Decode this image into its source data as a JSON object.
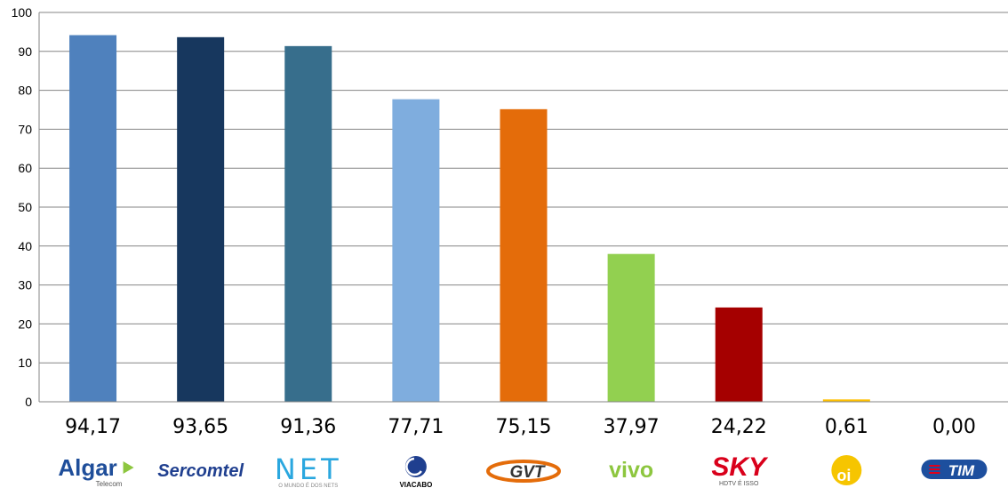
{
  "chart_data": {
    "type": "bar",
    "title": "",
    "xlabel": "",
    "ylabel": "",
    "ylim": [
      0,
      100
    ],
    "yticks": [
      0,
      10,
      20,
      30,
      40,
      50,
      60,
      70,
      80,
      90,
      100
    ],
    "grid": true,
    "legend": "none",
    "categories": [
      "Algar Telecom",
      "Sercomtel",
      "NET",
      "Viacabo",
      "GVT",
      "vivo",
      "SKY",
      "oi",
      "TIM"
    ],
    "values": [
      94.17,
      93.65,
      91.36,
      77.71,
      75.15,
      37.97,
      24.22,
      0.61,
      0.0
    ],
    "value_labels": [
      "94,17",
      "93,65",
      "91,36",
      "77,71",
      "75,15",
      "37,97",
      "24,22",
      "0,61",
      "0,00"
    ],
    "colors": [
      "#4f81bd",
      "#17375e",
      "#376e8c",
      "#7fadde",
      "#e46c0a",
      "#92d050",
      "#a50000",
      "#ffc000",
      "#1f497d"
    ],
    "logos": [
      {
        "name": "algar-telecom-logo",
        "text": "Algar",
        "subtext": "Telecom",
        "color": "#1f4e9a"
      },
      {
        "name": "sercomtel-logo",
        "text": "Sercomtel",
        "color": "#1f3f8f"
      },
      {
        "name": "net-logo",
        "text": "NET",
        "subtext": "O MUNDO É DOS NETS",
        "color": "#2aa7df"
      },
      {
        "name": "viacabo-logo",
        "text": "VIACABO",
        "color": "#1f3f8f"
      },
      {
        "name": "gvt-logo",
        "text": "GVT",
        "color": "#e46c0a"
      },
      {
        "name": "vivo-logo",
        "text": "vivo",
        "color": "#8dc63f"
      },
      {
        "name": "sky-logo",
        "text": "SKY",
        "subtext": "HDTV É ISSO",
        "color": "#d9001b"
      },
      {
        "name": "oi-logo",
        "text": "oi",
        "color": "#f6c500"
      },
      {
        "name": "tim-logo",
        "text": "TIM",
        "color": "#1d4f9e"
      }
    ]
  }
}
